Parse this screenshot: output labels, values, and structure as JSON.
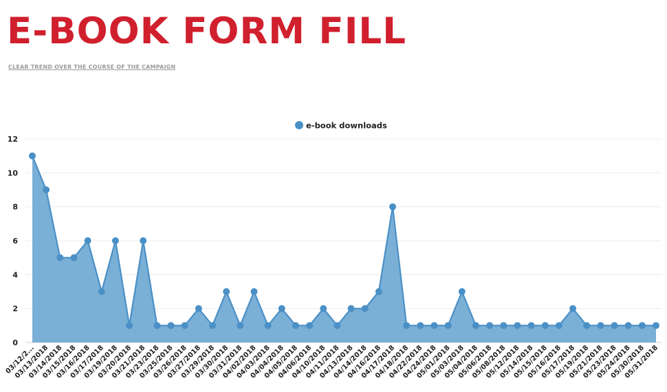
{
  "header": {
    "title": "E-BOOK FORM FILL",
    "subtitle": "CLEAR TREND OVER THE COURSE OF THE CAMPAIGN"
  },
  "colors": {
    "title": "#d0202e",
    "series_line": "#4a90c6",
    "series_fill": "#7aafd6",
    "grid": "#ececec"
  },
  "chart_data": {
    "type": "area",
    "title": "",
    "xlabel": "",
    "ylabel": "",
    "ylim": [
      0,
      12
    ],
    "yticks": [
      0,
      2,
      4,
      6,
      8,
      10,
      12
    ],
    "grid": true,
    "legend_position": "top-center",
    "categories": [
      "03/12/2...",
      "03/13/2018",
      "03/14/2018",
      "03/15/2018",
      "03/16/2018",
      "03/17/2018",
      "03/19/2018",
      "03/20/2018",
      "03/21/2018",
      "03/23/2018",
      "03/25/2018",
      "03/26/2018",
      "03/27/2018",
      "03/29/2018",
      "03/30/2018",
      "03/31/2018",
      "04/02/2018",
      "04/03/2018",
      "04/04/2018",
      "04/05/2018",
      "04/06/2018",
      "04/10/2018",
      "04/11/2018",
      "04/13/2018",
      "04/14/2018",
      "04/16/2018",
      "04/17/2018",
      "04/18/2018",
      "04/22/2018",
      "04/24/2018",
      "05/01/2018",
      "05/03/2018",
      "05/04/2018",
      "05/06/2018",
      "05/08/2018",
      "05/12/2018",
      "05/14/2018",
      "05/15/2018",
      "05/16/2018",
      "05/17/2018",
      "05/19/2018",
      "05/21/2018",
      "05/23/2018",
      "05/24/2018",
      "05/30/2018",
      "05/31/2018"
    ],
    "series": [
      {
        "name": "e-book downloads",
        "values": [
          11,
          9,
          5,
          5,
          6,
          3,
          6,
          1,
          6,
          1,
          1,
          1,
          2,
          1,
          3,
          1,
          3,
          1,
          2,
          1,
          1,
          2,
          1,
          2,
          2,
          3,
          8,
          1,
          1,
          1,
          1,
          3,
          1,
          1,
          1,
          1,
          1,
          1,
          1,
          2,
          1,
          1,
          1,
          1,
          1,
          1
        ]
      }
    ]
  }
}
